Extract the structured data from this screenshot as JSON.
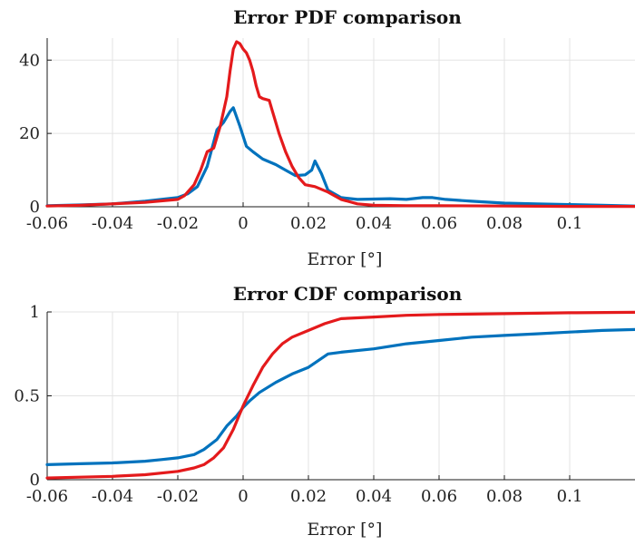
{
  "chart_data": [
    {
      "type": "line",
      "title": "Error PDF comparison",
      "xlabel": "Error [°]",
      "ylabel": "",
      "xlim": [
        -0.06,
        0.12
      ],
      "ylim": [
        0,
        46
      ],
      "grid": true,
      "xticks": [
        -0.06,
        -0.04,
        -0.02,
        0,
        0.02,
        0.04,
        0.06,
        0.08,
        0.1
      ],
      "xtick_labels": [
        "-0.06",
        "-0.04",
        "-0.02",
        "0",
        "0.02",
        "0.04",
        "0.06",
        "0.08",
        "0.1"
      ],
      "yticks": [
        0,
        20,
        40
      ],
      "ytick_labels": [
        "0",
        "20",
        "40"
      ],
      "series": [
        {
          "color": "#0072BD",
          "x": [
            -0.06,
            -0.05,
            -0.04,
            -0.03,
            -0.025,
            -0.02,
            -0.017,
            -0.014,
            -0.011,
            -0.008,
            -0.006,
            -0.004,
            -0.003,
            -0.001,
            0.001,
            0.003,
            0.006,
            0.01,
            0.013,
            0.016,
            0.019,
            0.021,
            0.022,
            0.024,
            0.026,
            0.03,
            0.035,
            0.045,
            0.05,
            0.055,
            0.058,
            0.062,
            0.07,
            0.08,
            0.09,
            0.1,
            0.11,
            0.12
          ],
          "y": [
            0.3,
            0.5,
            0.8,
            1.5,
            2.0,
            2.5,
            3.5,
            5.5,
            11,
            21,
            23,
            26,
            27,
            22,
            16.5,
            15,
            13,
            11.5,
            10,
            8.5,
            8.7,
            10,
            12.5,
            9,
            4.5,
            2.5,
            2.0,
            2.2,
            2.0,
            2.5,
            2.5,
            2.0,
            1.5,
            1.0,
            0.8,
            0.6,
            0.4,
            0.2
          ]
        },
        {
          "color": "#E41A1C",
          "x": [
            -0.06,
            -0.05,
            -0.04,
            -0.03,
            -0.025,
            -0.02,
            -0.018,
            -0.015,
            -0.013,
            -0.011,
            -0.009,
            -0.007,
            -0.005,
            -0.004,
            -0.003,
            -0.002,
            -0.001,
            0,
            0.001,
            0.002,
            0.003,
            0.004,
            0.005,
            0.006,
            0.008,
            0.009,
            0.011,
            0.013,
            0.015,
            0.017,
            0.019,
            0.022,
            0.026,
            0.03,
            0.035,
            0.04,
            0.05,
            0.06,
            0.08,
            0.1,
            0.12
          ],
          "y": [
            0.2,
            0.4,
            0.8,
            1.2,
            1.6,
            2.0,
            3.0,
            6.0,
            10,
            15,
            16,
            22,
            30,
            37,
            43,
            45,
            44.5,
            43,
            42,
            40,
            37,
            33,
            30,
            29.5,
            29,
            26,
            20,
            15,
            11,
            8,
            6,
            5.5,
            4,
            2,
            0.8,
            0.4,
            0.3,
            0.3,
            0.2,
            0.1,
            0.1
          ]
        }
      ]
    },
    {
      "type": "line",
      "title": "Error CDF comparison",
      "xlabel": "Error [°]",
      "ylabel": "",
      "xlim": [
        -0.06,
        0.12
      ],
      "ylim": [
        0,
        1
      ],
      "grid": true,
      "xticks": [
        -0.06,
        -0.04,
        -0.02,
        0,
        0.02,
        0.04,
        0.06,
        0.08,
        0.1
      ],
      "xtick_labels": [
        "-0.06",
        "-0.04",
        "-0.02",
        "0",
        "0.02",
        "0.04",
        "0.06",
        "0.08",
        "0.1"
      ],
      "yticks": [
        0,
        0.5,
        1
      ],
      "ytick_labels": [
        "0",
        "0.5",
        "1"
      ],
      "series": [
        {
          "color": "#0072BD",
          "x": [
            -0.06,
            -0.05,
            -0.04,
            -0.03,
            -0.025,
            -0.02,
            -0.015,
            -0.012,
            -0.008,
            -0.005,
            -0.002,
            0,
            0.002,
            0.005,
            0.01,
            0.015,
            0.02,
            0.026,
            0.03,
            0.04,
            0.05,
            0.06,
            0.07,
            0.08,
            0.09,
            0.1,
            0.11,
            0.12
          ],
          "y": [
            0.09,
            0.095,
            0.1,
            0.11,
            0.12,
            0.13,
            0.15,
            0.18,
            0.24,
            0.32,
            0.38,
            0.43,
            0.47,
            0.52,
            0.58,
            0.63,
            0.67,
            0.75,
            0.76,
            0.78,
            0.81,
            0.83,
            0.85,
            0.86,
            0.87,
            0.88,
            0.89,
            0.895
          ]
        },
        {
          "color": "#E41A1C",
          "x": [
            -0.06,
            -0.05,
            -0.04,
            -0.03,
            -0.02,
            -0.015,
            -0.012,
            -0.009,
            -0.006,
            -0.003,
            0,
            0.003,
            0.006,
            0.009,
            0.012,
            0.015,
            0.02,
            0.025,
            0.03,
            0.04,
            0.05,
            0.06,
            0.08,
            0.1,
            0.12
          ],
          "y": [
            0.01,
            0.015,
            0.02,
            0.03,
            0.05,
            0.07,
            0.09,
            0.13,
            0.19,
            0.3,
            0.44,
            0.56,
            0.67,
            0.75,
            0.81,
            0.85,
            0.89,
            0.93,
            0.96,
            0.97,
            0.98,
            0.985,
            0.99,
            0.995,
            0.998
          ]
        }
      ]
    }
  ]
}
